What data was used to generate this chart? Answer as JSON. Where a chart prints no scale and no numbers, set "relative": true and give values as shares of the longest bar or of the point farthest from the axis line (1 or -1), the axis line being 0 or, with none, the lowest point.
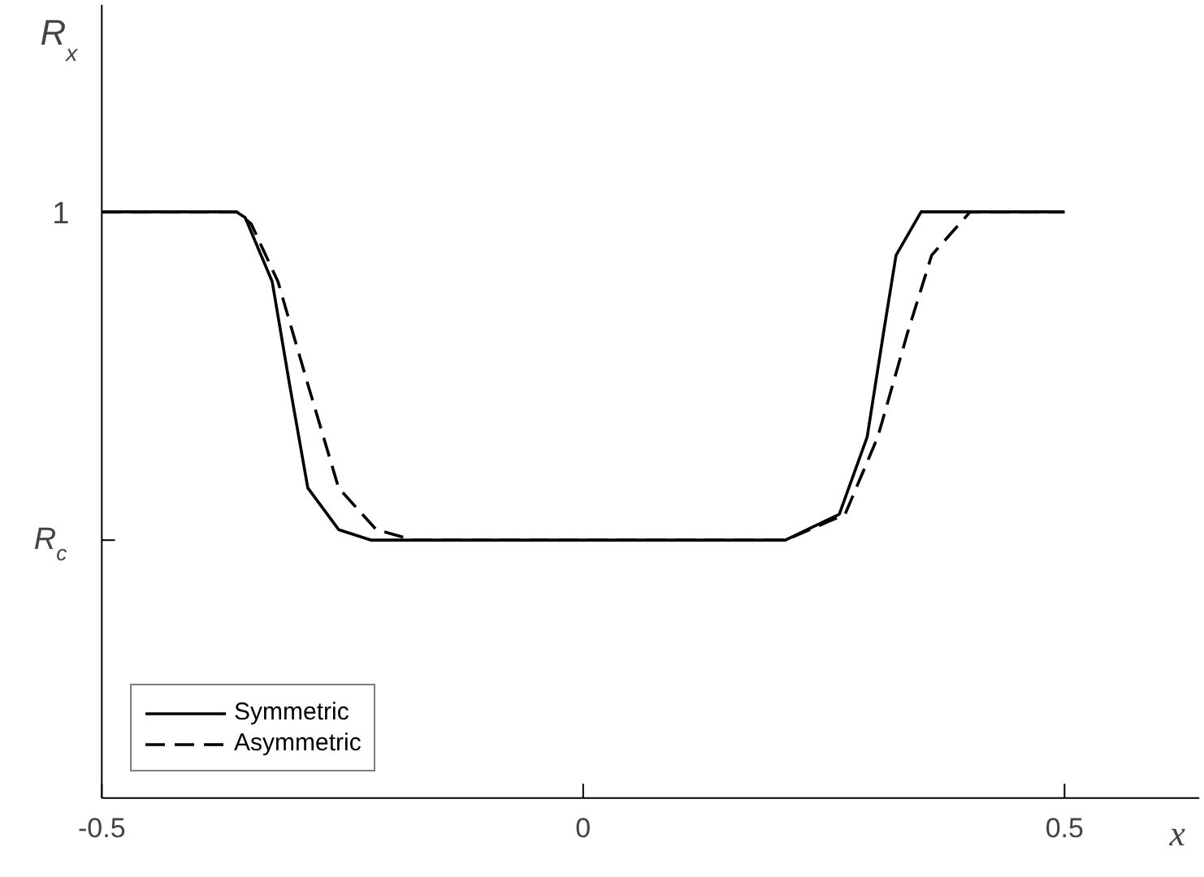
{
  "chart_data": {
    "type": "line",
    "relative": true,
    "xlabel": "x",
    "ylabel": "R$_{x}$",
    "xlim": [
      -0.5,
      0.64
    ],
    "xticks": [
      -0.5,
      0,
      0.5
    ],
    "annotations": [
      "1",
      "R$_{c}$"
    ],
    "legend": "bottom left",
    "grid": false,
    "series": [
      {
        "name": "Symmetric",
        "color": "#000000",
        "line_style": "solid",
        "x": [
          -0.5,
          -0.36,
          -0.351,
          -0.323,
          -0.305,
          -0.286,
          -0.254,
          -0.22,
          0,
          0.21,
          0.266,
          0.295,
          0.312,
          0.325,
          0.351,
          0.5
        ],
        "values": [
          1,
          1,
          0.99,
          0.881,
          0.706,
          0.529,
          0.458,
          0.44,
          0.44,
          0.44,
          0.484,
          0.616,
          0.794,
          0.926,
          1,
          1
        ]
      },
      {
        "name": "Asymmetric",
        "color": "#000000",
        "line_style": "dashed",
        "x": [
          -0.5,
          -0.36,
          -0.345,
          -0.317,
          -0.286,
          -0.254,
          -0.215,
          -0.176,
          0,
          0.21,
          0.272,
          0.306,
          0.337,
          0.362,
          0.402,
          0.5
        ],
        "values": [
          1,
          1,
          0.98,
          0.881,
          0.706,
          0.529,
          0.458,
          0.44,
          0.44,
          0.44,
          0.484,
          0.616,
          0.794,
          0.926,
          1,
          1
        ]
      }
    ]
  }
}
